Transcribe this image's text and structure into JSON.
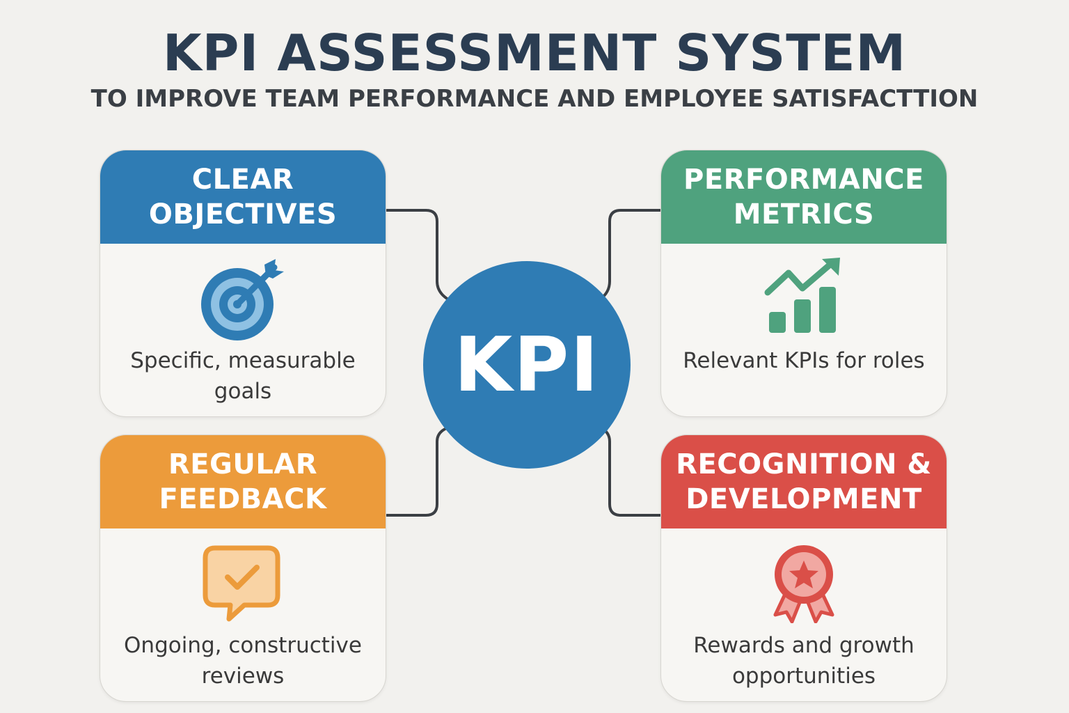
{
  "title": "KPI ASSESSMENT SYSTEM",
  "subtitle": "TO IMPROVE TEAM PERFORMANCE AND EMPLOYEE SATISFACTTION",
  "center_label": "KPI",
  "colors": {
    "background": "#f2f1ee",
    "title": "#2b3d52",
    "blue": "#2f7cb4",
    "green": "#4fa27e",
    "orange": "#ec9b3b",
    "red": "#da4f48",
    "connector": "#3b3f44"
  },
  "cards": {
    "clear_objectives": {
      "title_line1": "CLEAR",
      "title_line2": "OBJECTIVES",
      "icon": "target-icon",
      "desc_line1": "Specific, measurable",
      "desc_line2": "goals"
    },
    "performance_metrics": {
      "title_line1": "PERFORMANCE",
      "title_line2": "METRICS",
      "icon": "growth-chart-icon",
      "desc_line1": "Relevant KPIs for roles",
      "desc_line2": ""
    },
    "regular_feedback": {
      "title_line1": "REGULAR",
      "title_line2": "FEEDBACK",
      "icon": "feedback-check-icon",
      "desc_line1": "Ongoing, constructive",
      "desc_line2": "reviews"
    },
    "recognition_development": {
      "title_line1": "RECOGNITION &",
      "title_line2": "DEVELOPMENT",
      "icon": "award-ribbon-icon",
      "desc_line1": "Rewards and growth",
      "desc_line2": "opportunities"
    }
  }
}
